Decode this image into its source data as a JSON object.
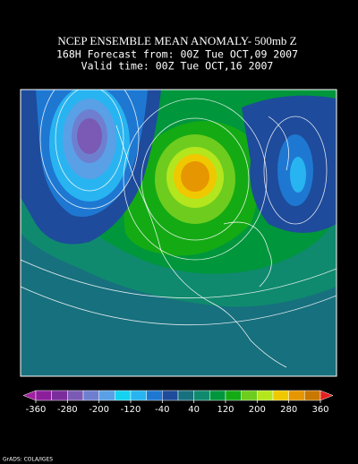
{
  "header": {
    "title": "NCEP ENSEMBLE MEAN ANOMALY- 500mb Z",
    "line2": "168H Forecast from: 00Z Tue OCT,09 2007",
    "line3": "Valid time: 00Z Tue OCT,16 2007"
  },
  "colorbar": {
    "clim": [
      -360,
      360
    ],
    "ticks": [
      -360,
      -280,
      -200,
      -120,
      -40,
      40,
      120,
      200,
      280,
      360
    ],
    "colors": [
      "#a01ea0",
      "#8c1e9c",
      "#7b2d9c",
      "#7a5ab4",
      "#6e7fd0",
      "#5aa0e6",
      "#14d2f0",
      "#28b4f0",
      "#1e78d2",
      "#1e4b9b",
      "#17707e",
      "#0f8a6e",
      "#00963c",
      "#14aa14",
      "#6ecc1e",
      "#b4e61e",
      "#f0c800",
      "#e69600",
      "#c87800",
      "#e61e1e"
    ]
  },
  "footer": "GrADS: COLA/IGES"
}
